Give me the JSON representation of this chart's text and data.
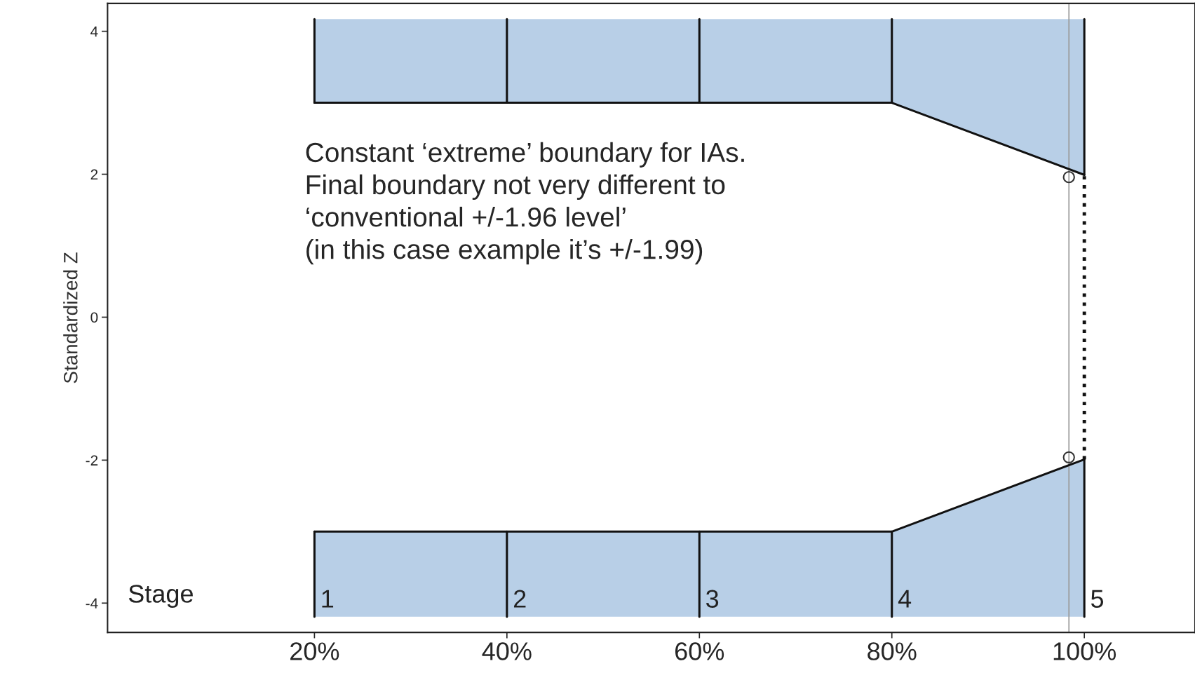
{
  "chart_data": {
    "type": "line",
    "ylabel": "Standardized Z",
    "xlim": [
      -0.015,
      1.115
    ],
    "ylim": [
      -4.41,
      4.39
    ],
    "xticks": [
      {
        "value": 0.2,
        "label": "20%"
      },
      {
        "value": 0.4,
        "label": "40%"
      },
      {
        "value": 0.6,
        "label": "60%"
      },
      {
        "value": 0.8,
        "label": "80%"
      },
      {
        "value": 1.0,
        "label": "100%"
      }
    ],
    "yticks": [
      {
        "value": 4,
        "label": "4"
      },
      {
        "value": 2,
        "label": "2"
      },
      {
        "value": 0,
        "label": "0"
      },
      {
        "value": -2,
        "label": "-2"
      },
      {
        "value": -4,
        "label": "-4"
      }
    ],
    "grid": false,
    "legend": false,
    "series": [
      {
        "color": "#111111",
        "x": [
          0.2,
          0.4,
          0.6,
          0.8,
          1.0
        ],
        "values": [
          3,
          3,
          3,
          3,
          1.99
        ],
        "lower": [
          3,
          3,
          3,
          3,
          1.99
        ],
        "upper": [
          4.17,
          4.17,
          4.17,
          4.17,
          4.17
        ]
      },
      {
        "color": "#111111",
        "x": [
          0.2,
          0.4,
          0.6,
          0.8,
          1.0
        ],
        "values": [
          -3,
          -3,
          -3,
          -3,
          -1.99
        ],
        "lower": [
          -4.19,
          -4.19,
          -4.19,
          -4.19,
          -4.19
        ],
        "upper": [
          -3,
          -3,
          -3,
          -3,
          -1.99
        ]
      },
      {
        "color": "#111111",
        "x": [
          0.2,
          0.2
        ],
        "values": [
          3,
          4.17
        ]
      },
      {
        "color": "#111111",
        "x": [
          0.4,
          0.4
        ],
        "values": [
          3,
          4.17
        ]
      },
      {
        "color": "#111111",
        "x": [
          0.6,
          0.6
        ],
        "values": [
          3,
          4.17
        ]
      },
      {
        "color": "#111111",
        "x": [
          0.8,
          0.8
        ],
        "values": [
          3,
          4.17
        ]
      },
      {
        "color": "#111111",
        "x": [
          1.0,
          1.0
        ],
        "values": [
          1.99,
          4.17
        ]
      },
      {
        "color": "#111111",
        "x": [
          0.2,
          0.2
        ],
        "values": [
          -3,
          -4.19
        ]
      },
      {
        "color": "#111111",
        "x": [
          0.4,
          0.4
        ],
        "values": [
          -3,
          -4.19
        ]
      },
      {
        "color": "#111111",
        "x": [
          0.6,
          0.6
        ],
        "values": [
          -3,
          -4.19
        ]
      },
      {
        "color": "#111111",
        "x": [
          0.8,
          0.8
        ],
        "values": [
          -3,
          -4.19
        ]
      },
      {
        "color": "#111111",
        "x": [
          1.0,
          1.0
        ],
        "values": [
          -1.99,
          -4.19
        ]
      },
      {
        "color": "#111111",
        "x": [
          1.0,
          1.0
        ],
        "values": [
          -1.99,
          1.99
        ],
        "line_style": "dotted"
      },
      {
        "type": "scatter",
        "color": "#333333",
        "x": [
          0.984,
          0.984
        ],
        "values": [
          1.96,
          -1.96
        ],
        "marker": "circle"
      }
    ],
    "ref_lines": [
      {
        "axis": "x",
        "value": 0.984,
        "color": "#999999"
      }
    ],
    "annotations": [
      "Constant ‘extreme’ boundary for IAs.\nFinal boundary not very different to\n‘conventional +/-1.96 level’\n(in this case example it’s +/-1.99)",
      "Stage",
      {
        "text": "1",
        "x": 0.2,
        "y": -4.19
      },
      {
        "text": "2",
        "x": 0.4,
        "y": -4.19
      },
      {
        "text": "3",
        "x": 0.6,
        "y": -4.19
      },
      {
        "text": "4",
        "x": 0.8,
        "y": -4.19
      },
      {
        "text": "5",
        "x": 1.0,
        "y": -4.19
      }
    ]
  }
}
